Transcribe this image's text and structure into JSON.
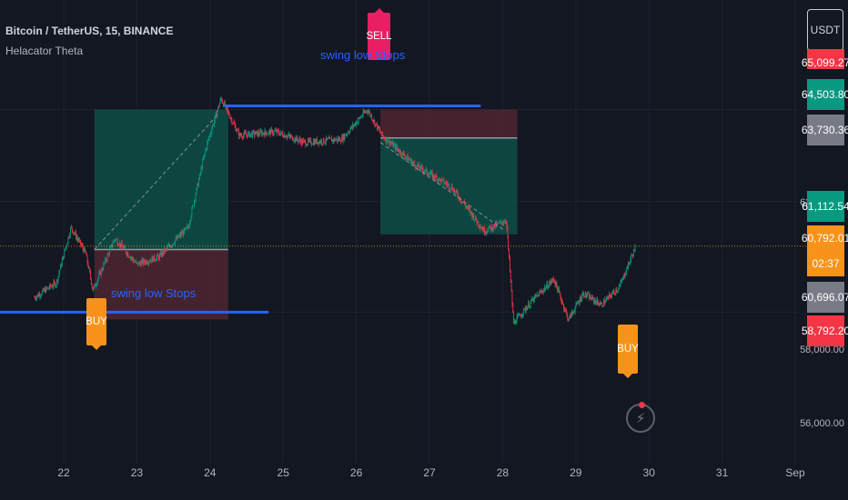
{
  "header": {
    "symbol_line": "Bitcoin / TetherUS, 15, BINANCE",
    "indicator": "Helacator Theta"
  },
  "currency_button": "USDT",
  "price_badges": [
    {
      "text": "65,099.27",
      "color": "#f23645"
    },
    {
      "text": "64,503.80",
      "color": "#089981"
    },
    {
      "text": "63,730.36",
      "color": "#787b86"
    },
    {
      "text": "61,112.54",
      "color": "#089981"
    },
    {
      "text": "60,792.01",
      "color": "#f7931a"
    },
    {
      "text": "02:37",
      "color": "#f7931a"
    },
    {
      "text": "60,696.07",
      "color": "#787b86"
    },
    {
      "text": "58,792.20",
      "color": "#f23645"
    }
  ],
  "annotations": {
    "buy_label": "BUY",
    "sell_label": "SELL",
    "swing_low_stops": "swing low Stops"
  },
  "icons": {
    "alert": "lightning-icon"
  },
  "chart_data": {
    "type": "candlestick",
    "x_axis_labels": [
      "22",
      "23",
      "24",
      "25",
      "26",
      "27",
      "28",
      "29",
      "30",
      "31",
      "Sep"
    ],
    "y_axis_labels": [
      "62,000.00",
      "58,000.00",
      "56,000.00"
    ],
    "y_range": [
      55500,
      66000
    ],
    "key_points": [
      {
        "day": 21.6,
        "price": 59400
      },
      {
        "day": 21.9,
        "price": 59800
      },
      {
        "day": 22.1,
        "price": 61300
      },
      {
        "day": 22.3,
        "price": 60600
      },
      {
        "day": 22.4,
        "price": 59600
      },
      {
        "day": 22.7,
        "price": 61000
      },
      {
        "day": 23.0,
        "price": 60300
      },
      {
        "day": 23.3,
        "price": 60500
      },
      {
        "day": 23.7,
        "price": 61300
      },
      {
        "day": 23.95,
        "price": 63500
      },
      {
        "day": 24.15,
        "price": 64800
      },
      {
        "day": 24.4,
        "price": 63800
      },
      {
        "day": 24.9,
        "price": 63900
      },
      {
        "day": 25.3,
        "price": 63600
      },
      {
        "day": 25.8,
        "price": 63700
      },
      {
        "day": 26.15,
        "price": 64500
      },
      {
        "day": 26.35,
        "price": 63800
      },
      {
        "day": 26.8,
        "price": 63000
      },
      {
        "day": 27.3,
        "price": 62400
      },
      {
        "day": 27.75,
        "price": 61200
      },
      {
        "day": 28.05,
        "price": 61500
      },
      {
        "day": 28.15,
        "price": 58700
      },
      {
        "day": 28.4,
        "price": 59300
      },
      {
        "day": 28.7,
        "price": 59900
      },
      {
        "day": 28.9,
        "price": 58800
      },
      {
        "day": 29.1,
        "price": 59500
      },
      {
        "day": 29.35,
        "price": 59200
      },
      {
        "day": 29.6,
        "price": 59700
      },
      {
        "day": 29.82,
        "price": 60792.01
      }
    ],
    "trades": [
      {
        "side": "long",
        "entry": 60700,
        "target": 64500,
        "stop": 58800,
        "from_day": 22.42,
        "to_day": 24.25
      },
      {
        "side": "short",
        "entry": 63730.36,
        "target": 61112.54,
        "stop": 64503.8,
        "from_day": 26.33,
        "to_day": 28.2
      }
    ],
    "swing_lines": [
      {
        "price": 59000,
        "from_day": 21.1,
        "to_day": 24.8
      },
      {
        "price": 64600,
        "from_day": 24.2,
        "to_day": 27.7
      }
    ],
    "last_price": 60792.01,
    "grid": true,
    "colors": {
      "up": "#089981",
      "down": "#f23645",
      "target_zone": "#0d4f47",
      "stop_zone": "#4a2531",
      "swing_line": "#2962ff"
    }
  }
}
